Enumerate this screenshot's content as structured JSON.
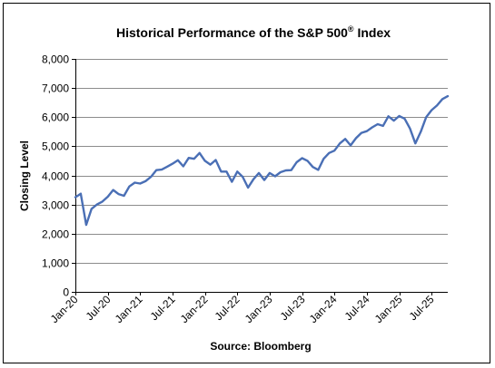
{
  "chart_data": {
    "type": "line",
    "title": {
      "main": "Historical  Performance  of the S&P 500",
      "superscript": "®",
      "suffix": " Index"
    },
    "xlabel": "Source: Bloomberg",
    "ylabel": "Closing Level",
    "ylim": [
      0,
      8000
    ],
    "yticks": [
      "0",
      "1,000",
      "2,000",
      "3,000",
      "4,000",
      "5,000",
      "6,000",
      "7,000",
      "8,000"
    ],
    "yticks_values": [
      0,
      1000,
      2000,
      3000,
      4000,
      5000,
      6000,
      7000,
      8000
    ],
    "xlim": [
      "2020-01",
      "2025-10"
    ],
    "xticks": [
      "Jan-20",
      "Jul-20",
      "Jan-21",
      "Jul-21",
      "Jan-22",
      "Jul-22",
      "Jan-23",
      "Jul-23",
      "Jan-24",
      "Jul-24",
      "Jan-25",
      "Jul-25"
    ],
    "xticks_dates": [
      "2020-01",
      "2020-07",
      "2021-01",
      "2021-07",
      "2022-01",
      "2022-07",
      "2023-01",
      "2023-07",
      "2024-01",
      "2024-07",
      "2025-01",
      "2025-07"
    ],
    "grid": "horizontal",
    "line_color": "#4a6fb5",
    "series": [
      {
        "x": [
          "2020-01",
          "2020-02",
          "2020-03",
          "2020-04",
          "2020-05",
          "2020-06",
          "2020-07",
          "2020-08",
          "2020-09",
          "2020-10",
          "2020-11",
          "2020-12",
          "2021-01",
          "2021-02",
          "2021-03",
          "2021-04",
          "2021-05",
          "2021-06",
          "2021-07",
          "2021-08",
          "2021-09",
          "2021-10",
          "2021-11",
          "2021-12",
          "2022-01",
          "2022-02",
          "2022-03",
          "2022-04",
          "2022-05",
          "2022-06",
          "2022-07",
          "2022-08",
          "2022-09",
          "2022-10",
          "2022-11",
          "2022-12",
          "2023-01",
          "2023-02",
          "2023-03",
          "2023-04",
          "2023-05",
          "2023-06",
          "2023-07",
          "2023-08",
          "2023-09",
          "2023-10",
          "2023-11",
          "2023-12",
          "2024-01",
          "2024-02",
          "2024-03",
          "2024-04",
          "2024-05",
          "2024-06",
          "2024-07",
          "2024-08",
          "2024-09",
          "2024-10",
          "2024-11",
          "2024-12",
          "2025-01",
          "2025-02",
          "2025-03",
          "2025-04",
          "2025-05",
          "2025-06",
          "2025-07",
          "2025-08",
          "2025-09",
          "2025-10"
        ],
        "values": [
          3250,
          3370,
          2300,
          2850,
          3000,
          3100,
          3270,
          3500,
          3360,
          3300,
          3620,
          3750,
          3720,
          3800,
          3950,
          4180,
          4200,
          4300,
          4400,
          4520,
          4310,
          4600,
          4570,
          4770,
          4500,
          4370,
          4530,
          4130,
          4130,
          3780,
          4130,
          3950,
          3580,
          3870,
          4080,
          3840,
          4080,
          3970,
          4110,
          4170,
          4180,
          4450,
          4590,
          4500,
          4290,
          4190,
          4570,
          4770,
          4850,
          5100,
          5250,
          5030,
          5280,
          5460,
          5520,
          5650,
          5760,
          5700,
          6030,
          5880,
          6040,
          5950,
          5610,
          5100,
          5500,
          6000,
          6240,
          6400,
          6620,
          6720
        ]
      }
    ]
  }
}
